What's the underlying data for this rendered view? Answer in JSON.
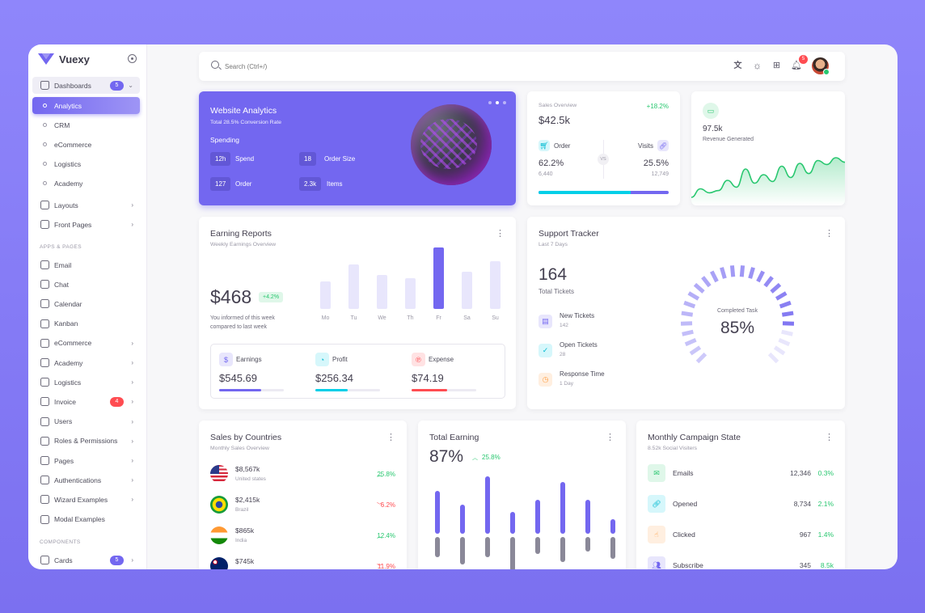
{
  "app": {
    "name": "Vuexy"
  },
  "sidebar": {
    "dashboards": {
      "label": "Dashboards",
      "badge": "5"
    },
    "subitems": [
      "Analytics",
      "CRM",
      "eCommerce",
      "Logistics",
      "Academy"
    ],
    "items1": [
      {
        "label": "Layouts"
      },
      {
        "label": "Front Pages"
      }
    ],
    "section_apps": "APPS & PAGES",
    "apps": [
      {
        "label": "Email",
        "chev": false
      },
      {
        "label": "Chat",
        "chev": false
      },
      {
        "label": "Calendar",
        "chev": false
      },
      {
        "label": "Kanban",
        "chev": false
      },
      {
        "label": "eCommerce",
        "chev": true
      },
      {
        "label": "Academy",
        "chev": true
      },
      {
        "label": "Logistics",
        "chev": true
      },
      {
        "label": "Invoice",
        "chev": true,
        "badge": "4"
      },
      {
        "label": "Users",
        "chev": true
      },
      {
        "label": "Roles & Permissions",
        "chev": true
      },
      {
        "label": "Pages",
        "chev": true
      },
      {
        "label": "Authentications",
        "chev": true
      },
      {
        "label": "Wizard Examples",
        "chev": true
      },
      {
        "label": "Modal Examples",
        "chev": false
      }
    ],
    "section_components": "COMPONENTS",
    "cards": {
      "label": "Cards",
      "badge": "5"
    }
  },
  "topbar": {
    "search_placeholder": "Search (Ctrl+/)",
    "notifications": "5"
  },
  "website_analytics": {
    "title": "Website Analytics",
    "subtitle": "Total 28.5% Conversion Rate",
    "spending_label": "Spending",
    "stats": [
      {
        "value": "12h",
        "label": "Spend"
      },
      {
        "value": "18",
        "label": "Order Size"
      },
      {
        "value": "127",
        "label": "Order"
      },
      {
        "value": "2.3k",
        "label": "Items"
      }
    ]
  },
  "sales_overview": {
    "label": "Sales Overview",
    "change": "+18.2%",
    "value": "$42.5k",
    "order": {
      "label": "Order",
      "percent": "62.2%",
      "count": "6,440"
    },
    "visits": {
      "label": "Visits",
      "percent": "25.5%",
      "count": "12,749"
    },
    "vs": "VS",
    "progress": 0.71
  },
  "revenue": {
    "value": "97.5k",
    "label": "Revenue Generated"
  },
  "earning_reports": {
    "title": "Earning Reports",
    "subtitle": "Weekly Earnings Overview",
    "amount": "$468",
    "change": "+4.2%",
    "note_line1": "You informed of this week",
    "note_line2": "compared to last week",
    "summary": [
      {
        "label": "Earnings",
        "value": "$545.69",
        "progress": 0.65
      },
      {
        "label": "Profit",
        "value": "$256.34",
        "progress": 0.5
      },
      {
        "label": "Expense",
        "value": "$74.19",
        "progress": 0.55
      }
    ]
  },
  "support_tracker": {
    "title": "Support Tracker",
    "subtitle": "Last 7 Days",
    "total": "164",
    "total_label": "Total Tickets",
    "rows": [
      {
        "label": "New Tickets",
        "value": "142"
      },
      {
        "label": "Open Tickets",
        "value": "28"
      },
      {
        "label": "Response Time",
        "value": "1 Day"
      }
    ],
    "gauge_label": "Completed Task",
    "gauge_value": "85%",
    "gauge_level": 0.85
  },
  "sales_countries": {
    "title": "Sales by Countries",
    "subtitle": "Monthly Sales Overview",
    "rows": [
      {
        "amount": "$8,567k",
        "country": "United states",
        "change": "25.8%",
        "up": true
      },
      {
        "amount": "$2,415k",
        "country": "Brazil",
        "change": "6.2%",
        "up": false
      },
      {
        "amount": "$865k",
        "country": "India",
        "change": "12.4%",
        "up": true
      },
      {
        "amount": "$745k",
        "country": "",
        "change": "11.9%",
        "up": false
      }
    ]
  },
  "total_earning": {
    "title": "Total Earning",
    "value": "87%",
    "change": "25.8%"
  },
  "campaign": {
    "title": "Monthly Campaign State",
    "subtitle": "8.52k Social Visiters",
    "rows": [
      {
        "label": "Emails",
        "value": "12,346",
        "change": "0.3%"
      },
      {
        "label": "Opened",
        "value": "8,734",
        "change": "2.1%"
      },
      {
        "label": "Clicked",
        "value": "967",
        "change": "1.4%"
      },
      {
        "label": "Subscribe",
        "value": "345",
        "change": "8.5k"
      }
    ]
  },
  "chart_data": [
    {
      "type": "bar",
      "categories": [
        "Mo",
        "Tu",
        "We",
        "Th",
        "Fr",
        "Sa",
        "Su"
      ],
      "values": [
        40,
        65,
        50,
        45,
        90,
        55,
        70
      ]
    },
    {
      "type": "area",
      "values": [
        30,
        45,
        38,
        42,
        60,
        48,
        80,
        55,
        70,
        58,
        85,
        65,
        90,
        72,
        95,
        88,
        100,
        92
      ]
    },
    {
      "type": "bar",
      "series": [
        {
          "values": [
            82,
            55,
            110,
            42,
            65,
            98,
            64,
            27
          ]
        },
        {
          "values": [
            -38,
            -52,
            -38,
            -65,
            -32,
            -48,
            -28,
            -42
          ]
        }
      ]
    }
  ],
  "colors": {
    "primary": "#7367f0",
    "success": "#28c76f",
    "info": "#00cfe8",
    "danger": "#ff4c51",
    "warning": "#ff9f43"
  }
}
